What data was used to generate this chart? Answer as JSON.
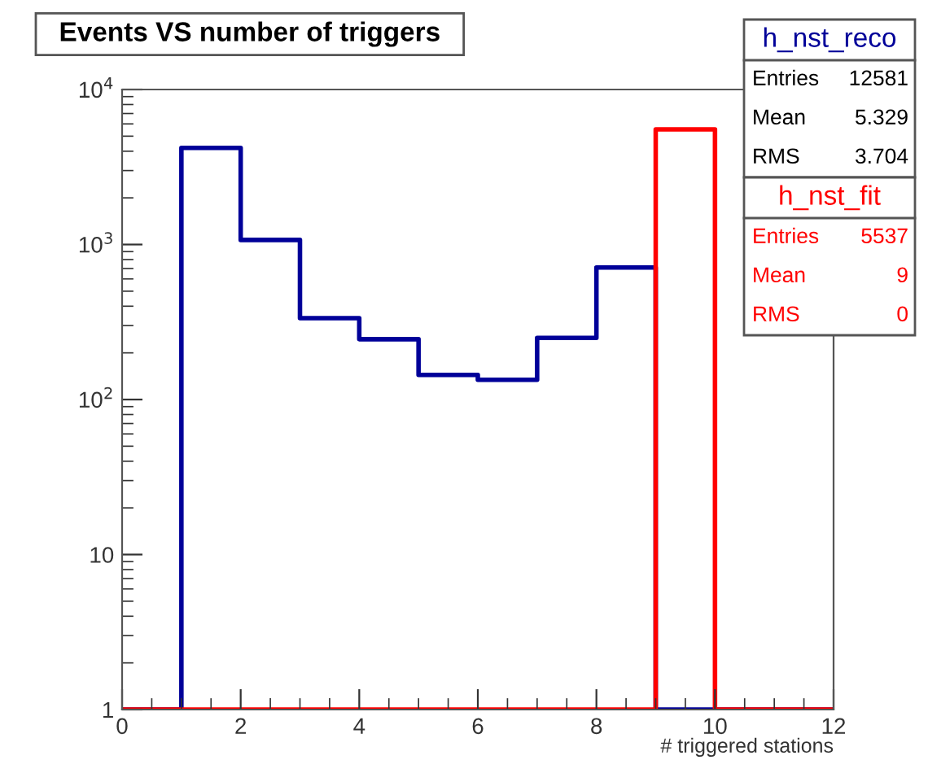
{
  "chart_data": {
    "type": "histogram",
    "title": "Events VS number of triggers",
    "xlabel": "# triggered stations",
    "bins": [
      0,
      1,
      2,
      3,
      4,
      5,
      6,
      7,
      8,
      9,
      10,
      11,
      12
    ],
    "series": [
      {
        "name": "h_nst_reco",
        "color": "#000099",
        "values": [
          1,
          4200,
          1070,
          335,
          245,
          144,
          134,
          250,
          710,
          1,
          1,
          1
        ]
      },
      {
        "name": "h_nst_fit",
        "color": "#ff0000",
        "values": [
          1,
          1,
          1,
          1,
          1,
          1,
          1,
          1,
          1,
          5537,
          1,
          1
        ]
      }
    ],
    "annotations": [
      "Entries",
      "12581",
      "Mean",
      "5.329",
      "RMS",
      "3.704",
      "Entries",
      "5537",
      "Mean",
      "9",
      "RMS",
      "0"
    ],
    "log": "y",
    "xlim": [
      0,
      12
    ],
    "xticks": [
      0,
      2,
      4,
      6,
      8,
      10,
      12
    ],
    "ylim": [
      1,
      10000
    ],
    "yticks": [
      1,
      10,
      {
        "value": 100,
        "label": "10$^{2}$"
      },
      {
        "value": 1000,
        "label": "10$^{3}$"
      },
      {
        "value": 10000,
        "label": "10$^{4}$"
      }
    ],
    "legend": "top right",
    "grid": false
  }
}
